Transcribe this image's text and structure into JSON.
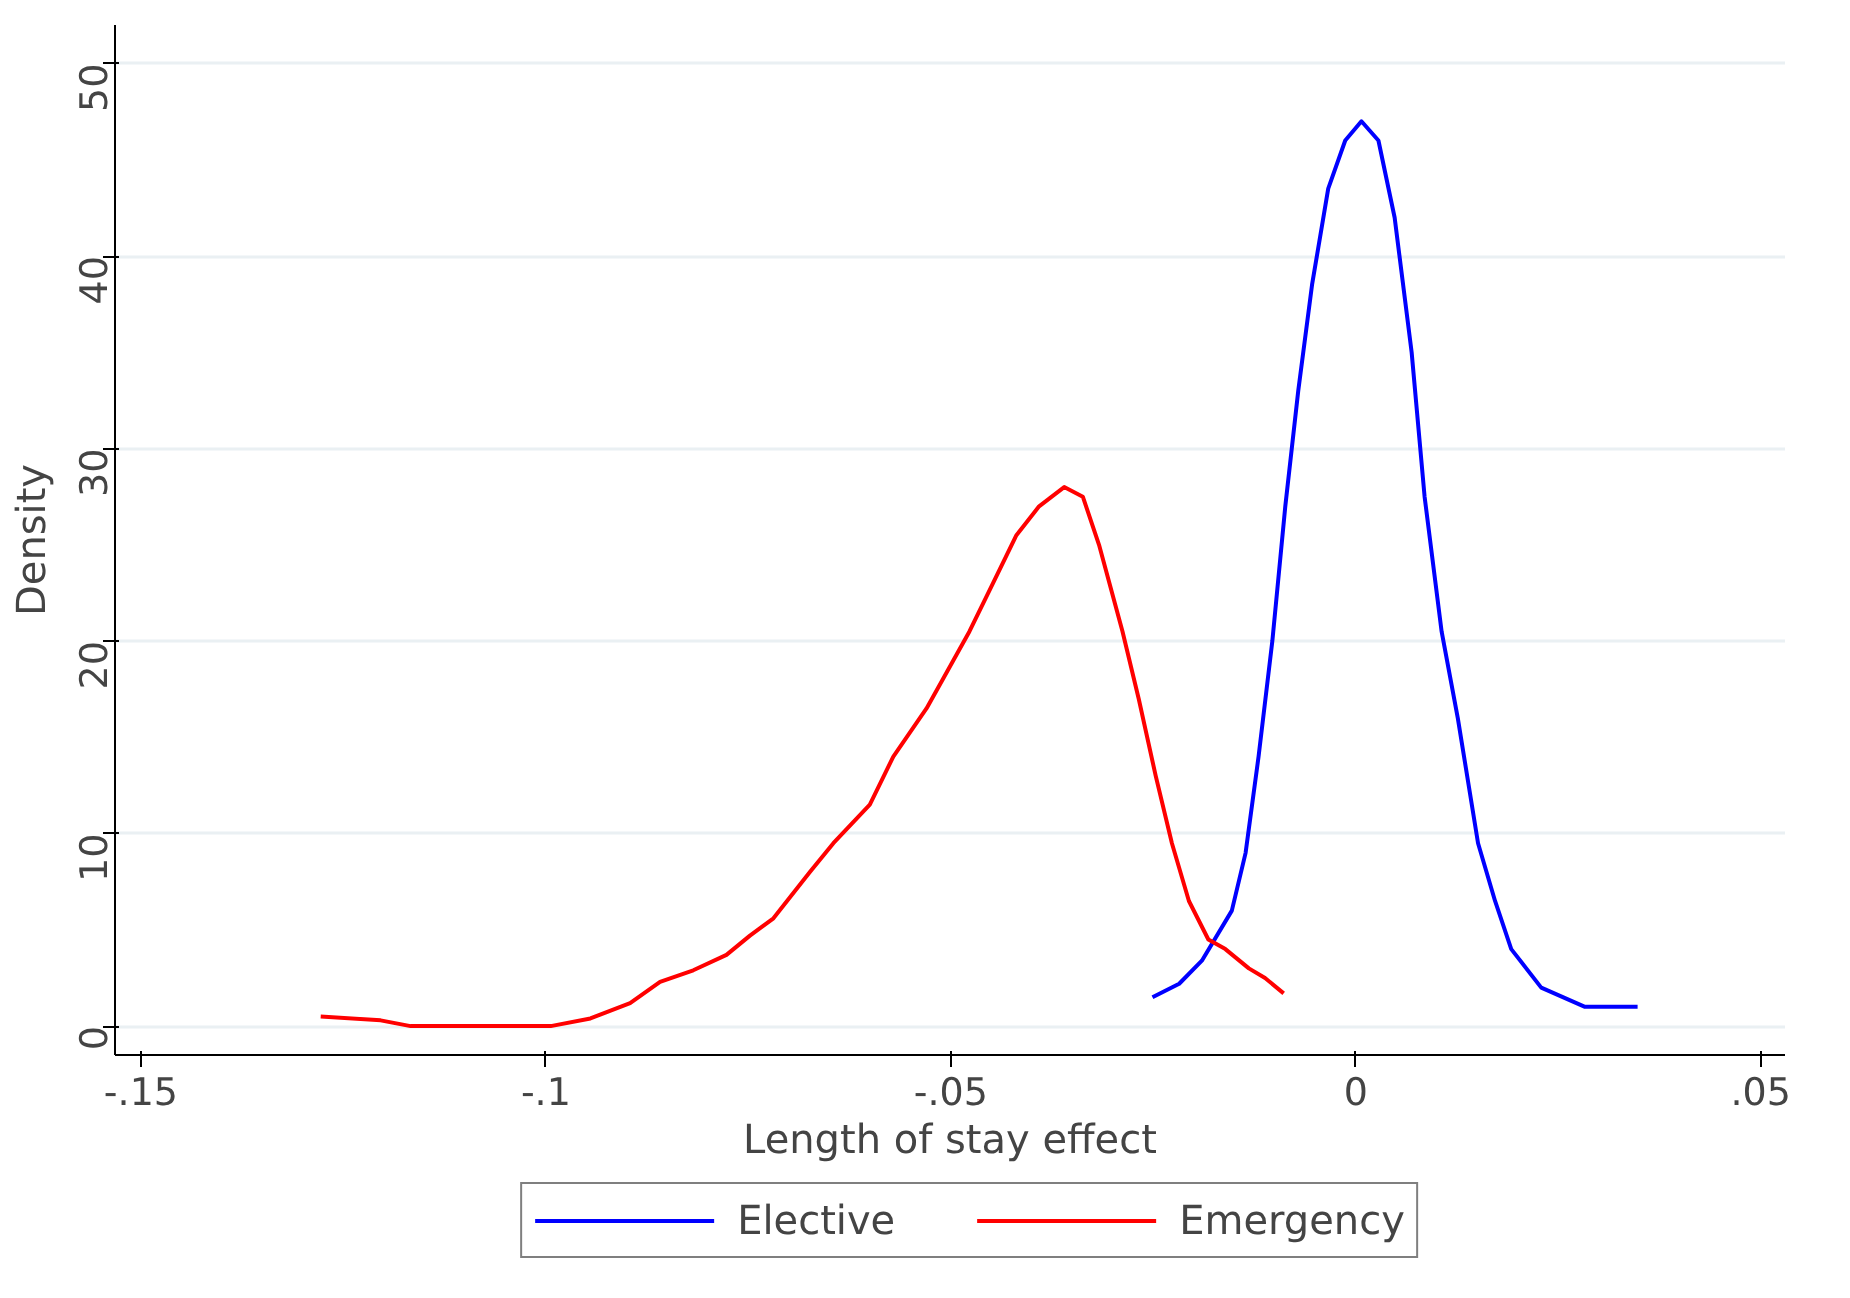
{
  "chart_data": {
    "type": "line",
    "xlabel": "Length of stay effect",
    "ylabel": "Density",
    "xlim": [
      -0.1532,
      0.053
    ],
    "ylim": [
      -1.5,
      52
    ],
    "xticks": [
      {
        "value": -0.15,
        "label": "-.15"
      },
      {
        "value": -0.1,
        "label": "-.1"
      },
      {
        "value": -0.05,
        "label": "-.05"
      },
      {
        "value": 0,
        "label": "0"
      },
      {
        "value": 0.05,
        "label": ".05"
      }
    ],
    "yticks": [
      0,
      10,
      20,
      30,
      40,
      50
    ],
    "grid": "y",
    "legend": "bottom",
    "line_style": "solid",
    "marker": "none",
    "series": [
      {
        "name": "Elective",
        "color": "#0000ff",
        "x": [
          -0.0251,
          -0.0218,
          -0.019,
          -0.0153,
          -0.0136,
          -0.012,
          -0.0103,
          -0.0087,
          -0.0071,
          -0.0054,
          -0.0034,
          -0.0013,
          0.0007,
          0.0028,
          0.0048,
          0.0069,
          0.0085,
          0.0106,
          0.0126,
          0.0151,
          0.0172,
          0.0192,
          0.0229,
          0.0283,
          0.0348
        ],
        "values": [
          1.5,
          2.2,
          3.4,
          6,
          9,
          14,
          20,
          27,
          33,
          38.5,
          43.5,
          46,
          47,
          46,
          42,
          35,
          27.5,
          20.5,
          16,
          9.5,
          6.5,
          4,
          2,
          1,
          1
        ]
      },
      {
        "name": "Emergency",
        "color": "#ff0000",
        "x": [
          -0.1278,
          -0.1204,
          -0.1167,
          -0.0994,
          -0.0945,
          -0.0896,
          -0.0859,
          -0.0818,
          -0.0777,
          -0.0748,
          -0.0719,
          -0.0674,
          -0.0645,
          -0.06,
          -0.0571,
          -0.053,
          -0.051,
          -0.0477,
          -0.0448,
          -0.0419,
          -0.0391,
          -0.036,
          -0.0337,
          -0.0317,
          -0.0288,
          -0.0268,
          -0.0247,
          -0.0227,
          -0.0206,
          -0.0182,
          -0.0161,
          -0.0132,
          -0.0112,
          -0.0089
        ],
        "values": [
          0.5,
          0.3,
          0,
          0,
          0.4,
          1.2,
          2.3,
          2.9,
          3.7,
          4.7,
          5.6,
          8,
          9.5,
          11.5,
          14,
          16.5,
          18,
          20.5,
          23,
          25.5,
          27,
          28,
          27.5,
          25,
          20.5,
          17,
          13,
          9.5,
          6.5,
          4.5,
          4,
          3,
          2.5,
          1.7
        ]
      }
    ]
  }
}
